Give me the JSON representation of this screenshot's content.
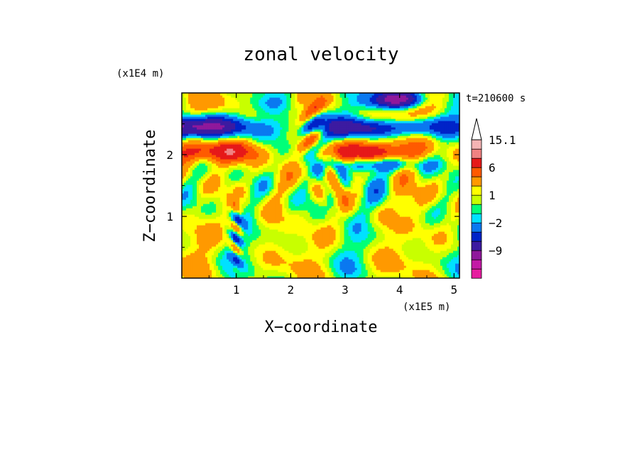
{
  "chart_data": {
    "type": "heatmap",
    "title": "zonal velocity",
    "time_label": "t=210600 s",
    "xlabel": "X−coordinate",
    "ylabel": "Z−coordinate",
    "x_unit": "(x1E5 m)",
    "y_unit": "(x1E4 m)",
    "x_ticks": [
      "1",
      "2",
      "3",
      "4",
      "5"
    ],
    "y_ticks": [
      "1",
      "2"
    ],
    "xlim": [
      0,
      5.1
    ],
    "ylim": [
      0,
      3
    ],
    "colorbar": {
      "levels": [
        -15,
        -12,
        -9,
        -6,
        -4,
        -2,
        -1,
        0,
        1,
        2,
        4,
        6,
        9,
        12,
        15.1
      ],
      "colors": [
        "#e61ea0",
        "#c31aa6",
        "#8f189b",
        "#3c1ba1",
        "#0023c8",
        "#0a78f0",
        "#00e1ff",
        "#00ff78",
        "#c8ff00",
        "#ffff00",
        "#ff9900",
        "#ff5a00",
        "#e61919",
        "#f08282",
        "#f5b4b4",
        "#ffffff"
      ],
      "labels": [
        "15.1",
        "6",
        "1",
        "−2",
        "−9"
      ],
      "extend_max": true
    },
    "field_description_bands": [
      {
        "z": 2.7,
        "value": 4
      },
      {
        "z": 2.4,
        "value": -4
      },
      {
        "z": 2.0,
        "value": 6
      },
      {
        "z": 1.6,
        "value": 2
      },
      {
        "z": 1.0,
        "value": 0
      },
      {
        "z": 0.4,
        "value": 1
      }
    ]
  }
}
